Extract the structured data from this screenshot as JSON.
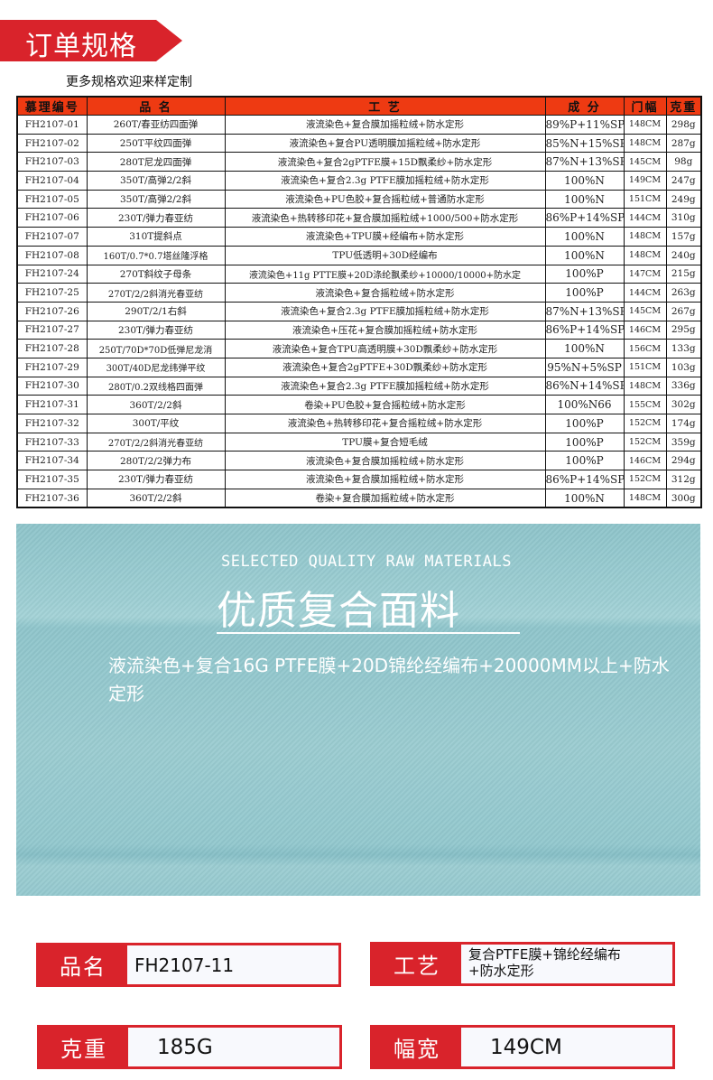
{
  "header": {
    "title": "订单规格",
    "subtitle": "更多规格欢迎来样定制",
    "accent": "#d9232b"
  },
  "table": {
    "columns": [
      "慕理编号",
      "品 名",
      "工 艺",
      "成 分",
      "门幅",
      "克重"
    ],
    "rows": [
      [
        "FH2107-01",
        "260T/春亚纺四面弹",
        "液流染色+复合膜加摇粒绒+防水定形",
        "89%P+11%SP",
        "148CM",
        "298g"
      ],
      [
        "FH2107-02",
        "250T平纹四面弹",
        "液流染色+复合PU透明膜加摇粒绒+防水定形",
        "85%N+15%SP",
        "148CM",
        "287g"
      ],
      [
        "FH2107-03",
        "280T尼龙四面弹",
        "液流染色+复合2gPTFE膜+15D飘柔纱+防水定形",
        "87%N+13%SP",
        "145CM",
        "98g"
      ],
      [
        "FH2107-04",
        "350T/高弹2/2斜",
        "液流染色+复合2.3g PTFE膜加摇粒绒+防水定形",
        "100%N",
        "149CM",
        "247g"
      ],
      [
        "FH2107-05",
        "350T/高弹2/2斜",
        "液流染色+PU色胶+复合摇粒绒+普通防水定形",
        "100%N",
        "151CM",
        "249g"
      ],
      [
        "FH2107-06",
        "230T/弹力春亚纺",
        "液流染色+热转移印花+复合膜加摇粒绒+1000/500+防水定形",
        "86%P+14%SP",
        "144CM",
        "310g"
      ],
      [
        "FH2107-07",
        "310T提斜点",
        "液流染色+TPU膜+经编布+防水定形",
        "100%N",
        "148CM",
        "157g"
      ],
      [
        "FH2107-08",
        "160T/0.7*0.7塔丝隆浮格",
        "TPU低透明+30D经编布",
        "100%N",
        "148CM",
        "240g"
      ],
      [
        "FH2107-24",
        "270T斜纹子母条",
        "液流染色+11g PTTE膜+20D涤纶飘柔纱+10000/10000+防水定",
        "100%P",
        "147CM",
        "215g"
      ],
      [
        "FH2107-25",
        "270T/2/2斜消光春亚纺",
        "液流染色+复合摇粒绒+防水定形",
        "100%P",
        "144CM",
        "263g"
      ],
      [
        "FH2107-26",
        "290T/2/1右斜",
        "液流染色+复合2.3g PTFE膜加摇粒绒+防水定形",
        "87%N+13%SP",
        "145CM",
        "267g"
      ],
      [
        "FH2107-27",
        "230T/弹力春亚纺",
        "液流染色+压花+复合膜加摇粒绒+防水定形",
        "86%P+14%SP",
        "146CM",
        "295g"
      ],
      [
        "FH2107-28",
        "250T/70D*70D低弹尼龙消",
        "液流染色+复合TPU高透明膜+30D飘柔纱+防水定形",
        "100%N",
        "156CM",
        "133g"
      ],
      [
        "FH2107-29",
        "300T/40D尼龙纬弹平纹",
        "液流染色+复合2gPTFE+30D飘柔纱+防水定形",
        "95%N+5%SP",
        "151CM",
        "103g"
      ],
      [
        "FH2107-30",
        "280T/0.2双线格四面弹",
        "液流染色+复合2.3g PTFE膜加摇粒绒+防水定形",
        "86%N+14%SP",
        "148CM",
        "336g"
      ],
      [
        "FH2107-31",
        "360T/2/2斜",
        "卷染+PU色胶+复合摇粒绒+防水定形",
        "100%N66",
        "155CM",
        "302g"
      ],
      [
        "FH2107-32",
        "300T/平纹",
        "液流染色+热转移印花+复合摇粒绒+防水定形",
        "100%P",
        "152CM",
        "174g"
      ],
      [
        "FH2107-33",
        "270T/2/2斜消光春亚纺",
        "TPU膜+复合短毛绒",
        "100%P",
        "152CM",
        "359g"
      ],
      [
        "FH2107-34",
        "280T/2/2弹力布",
        "液流染色+复合膜加摇粒绒+防水定形",
        "100%P",
        "146CM",
        "294g"
      ],
      [
        "FH2107-35",
        "230T/弹力春亚纺",
        "液流染色+复合膜加摇粒绒+防水定形",
        "86%P+14%SP",
        "152CM",
        "312g"
      ],
      [
        "FH2107-36",
        "360T/2/2斜",
        "卷染+复合膜加摇粒绒+防水定形",
        "100%N",
        "148CM",
        "300g"
      ]
    ],
    "header_color": "#ee3a12"
  },
  "feature": {
    "en": "SELECTED QUALITY RAW MATERIALS",
    "cn": "优质复合面料",
    "desc": "液流染色+复合16G PTFE膜+20D锦纶经编布+20000MM以上+防水定形",
    "fabric_color": "#93c8ce"
  },
  "specs": [
    {
      "label": "品名",
      "value": "FH2107-11"
    },
    {
      "label": "工艺",
      "value": "复合PTFE膜+锦纶经编布\n+防水定形"
    },
    {
      "label": "克重",
      "value": "185G"
    },
    {
      "label": "幅宽",
      "value": "149CM"
    }
  ]
}
